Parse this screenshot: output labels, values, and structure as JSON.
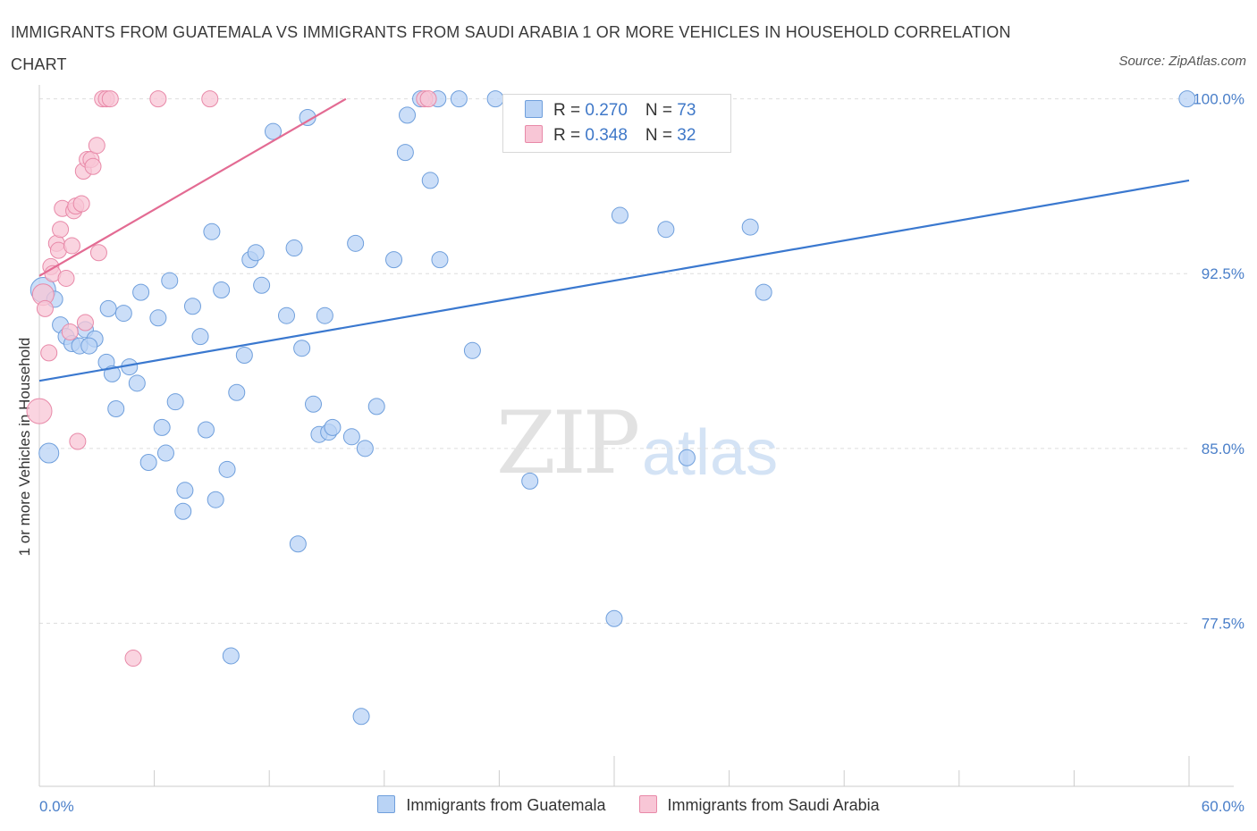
{
  "title": "IMMIGRANTS FROM GUATEMALA VS IMMIGRANTS FROM SAUDI ARABIA 1 OR MORE VEHICLES IN HOUSEHOLD CORRELATION CHART",
  "source": "Source: ZipAtlas.com",
  "watermark": {
    "zip": "ZIP",
    "atlas": "atlas"
  },
  "colors": {
    "guatemala_fill": "#b9d3f5",
    "guatemala_stroke": "#6f9fdc",
    "guatemala_line": "#3a78cf",
    "saudi_fill": "#f8c6d6",
    "saudi_stroke": "#e889a8",
    "saudi_line": "#e36b93",
    "tick_text": "#4a7fc9",
    "grid": "#dddddd"
  },
  "legend": {
    "rows": [
      {
        "r_label": "R = ",
        "r_value": "0.270",
        "n_label": "N = ",
        "n_value": "73"
      },
      {
        "r_label": "R = ",
        "r_value": "0.348",
        "n_label": "N = ",
        "n_value": "32"
      }
    ]
  },
  "chart_data": {
    "type": "scatter",
    "title": "IMMIGRANTS FROM GUATEMALA VS IMMIGRANTS FROM SAUDI ARABIA 1 OR MORE VEHICLES IN HOUSEHOLD CORRELATION CHART",
    "xlabel": "",
    "ylabel": "1 or more Vehicles in Household",
    "xlim": [
      0,
      60
    ],
    "ylim": [
      70.5,
      100.6
    ],
    "x_tick_labels": [
      "0.0%",
      "60.0%"
    ],
    "y_ticks": [
      77.5,
      85.0,
      92.5,
      100.0
    ],
    "y_tick_labels": [
      "77.5%",
      "85.0%",
      "92.5%",
      "100.0%"
    ],
    "grid": true,
    "legend_position": "top-center",
    "series": [
      {
        "name": "Immigrants from Guatemala",
        "trend": {
          "x": [
            0,
            60
          ],
          "y": [
            87.9,
            96.5
          ]
        },
        "points": [
          [
            0.2,
            91.8,
            14
          ],
          [
            0.5,
            84.8,
            11
          ],
          [
            0.8,
            91.4,
            9
          ],
          [
            1.1,
            90.3,
            9
          ],
          [
            1.4,
            89.8,
            9
          ],
          [
            1.7,
            89.5,
            9
          ],
          [
            2.1,
            89.4,
            9
          ],
          [
            2.4,
            90.1,
            9
          ],
          [
            2.9,
            89.7,
            9
          ],
          [
            2.6,
            89.4,
            9
          ],
          [
            3.5,
            88.7,
            9
          ],
          [
            3.8,
            88.2,
            9
          ],
          [
            3.6,
            91.0,
            9
          ],
          [
            4.4,
            90.8,
            9
          ],
          [
            4.7,
            88.5,
            9
          ],
          [
            5.1,
            87.8,
            9
          ],
          [
            4.0,
            86.7,
            9
          ],
          [
            5.3,
            91.7,
            9
          ],
          [
            5.7,
            84.4,
            9
          ],
          [
            6.2,
            90.6,
            9
          ],
          [
            6.4,
            85.9,
            9
          ],
          [
            6.6,
            84.8,
            9
          ],
          [
            6.8,
            92.2,
            9
          ],
          [
            7.1,
            87.0,
            9
          ],
          [
            7.5,
            82.3,
            9
          ],
          [
            7.6,
            83.2,
            9
          ],
          [
            8.0,
            91.1,
            9
          ],
          [
            8.4,
            89.8,
            9
          ],
          [
            8.7,
            85.8,
            9
          ],
          [
            9.0,
            94.3,
            9
          ],
          [
            9.2,
            82.8,
            9
          ],
          [
            9.5,
            91.8,
            9
          ],
          [
            9.8,
            84.1,
            9
          ],
          [
            10.0,
            76.1,
            9
          ],
          [
            10.3,
            87.4,
            9
          ],
          [
            10.7,
            89.0,
            9
          ],
          [
            11.0,
            93.1,
            9
          ],
          [
            11.3,
            93.4,
            9
          ],
          [
            11.6,
            92.0,
            9
          ],
          [
            12.2,
            98.6,
            9
          ],
          [
            12.9,
            90.7,
            9
          ],
          [
            13.3,
            93.6,
            9
          ],
          [
            13.5,
            80.9,
            9
          ],
          [
            13.7,
            89.3,
            9
          ],
          [
            14.0,
            99.2,
            9
          ],
          [
            14.3,
            86.9,
            9
          ],
          [
            14.6,
            85.6,
            9
          ],
          [
            14.9,
            90.7,
            9
          ],
          [
            15.1,
            85.7,
            9
          ],
          [
            15.3,
            85.9,
            9
          ],
          [
            16.3,
            85.5,
            9
          ],
          [
            16.5,
            93.8,
            9
          ],
          [
            16.8,
            73.5,
            9
          ],
          [
            17.0,
            85.0,
            9
          ],
          [
            17.6,
            86.8,
            9
          ],
          [
            18.5,
            93.1,
            9
          ],
          [
            19.1,
            97.7,
            9
          ],
          [
            19.2,
            99.3,
            9
          ],
          [
            19.9,
            100.0,
            9
          ],
          [
            20.8,
            100.0,
            9
          ],
          [
            20.4,
            96.5,
            9
          ],
          [
            20.9,
            93.1,
            9
          ],
          [
            21.9,
            100.0,
            9
          ],
          [
            22.6,
            89.2,
            9
          ],
          [
            23.8,
            100.0,
            9
          ],
          [
            25.6,
            83.6,
            9
          ],
          [
            30.0,
            77.7,
            9
          ],
          [
            30.3,
            95.0,
            9
          ],
          [
            32.7,
            94.4,
            9
          ],
          [
            33.8,
            84.6,
            9
          ],
          [
            37.1,
            94.5,
            9
          ],
          [
            37.8,
            91.7,
            9
          ],
          [
            59.9,
            100.0,
            9
          ]
        ]
      },
      {
        "name": "Immigrants from Saudi Arabia",
        "trend": {
          "x": [
            0,
            16
          ],
          "y": [
            92.4,
            100.0
          ]
        },
        "points": [
          [
            0.0,
            86.6,
            14
          ],
          [
            0.2,
            91.6,
            12
          ],
          [
            0.3,
            91.0,
            9
          ],
          [
            0.5,
            89.1,
            9
          ],
          [
            0.6,
            92.8,
            9
          ],
          [
            0.7,
            92.5,
            9
          ],
          [
            0.9,
            93.8,
            9
          ],
          [
            1.0,
            93.5,
            9
          ],
          [
            1.1,
            94.4,
            9
          ],
          [
            1.2,
            95.3,
            9
          ],
          [
            1.4,
            92.3,
            9
          ],
          [
            1.6,
            90.0,
            9
          ],
          [
            1.7,
            93.7,
            9
          ],
          [
            1.8,
            95.2,
            9
          ],
          [
            1.9,
            95.4,
            9
          ],
          [
            2.0,
            85.3,
            9
          ],
          [
            2.2,
            95.5,
            9
          ],
          [
            2.3,
            96.9,
            9
          ],
          [
            2.4,
            90.4,
            9
          ],
          [
            2.5,
            97.4,
            9
          ],
          [
            2.7,
            97.4,
            9
          ],
          [
            2.8,
            97.1,
            9
          ],
          [
            3.0,
            98.0,
            9
          ],
          [
            3.1,
            93.4,
            9
          ],
          [
            3.3,
            100.0,
            9
          ],
          [
            3.5,
            100.0,
            9
          ],
          [
            3.7,
            100.0,
            9
          ],
          [
            4.9,
            76.0,
            9
          ],
          [
            6.2,
            100.0,
            9
          ],
          [
            8.9,
            100.0,
            9
          ],
          [
            20.1,
            100.0,
            9
          ],
          [
            20.3,
            100.0,
            9
          ]
        ]
      }
    ]
  }
}
